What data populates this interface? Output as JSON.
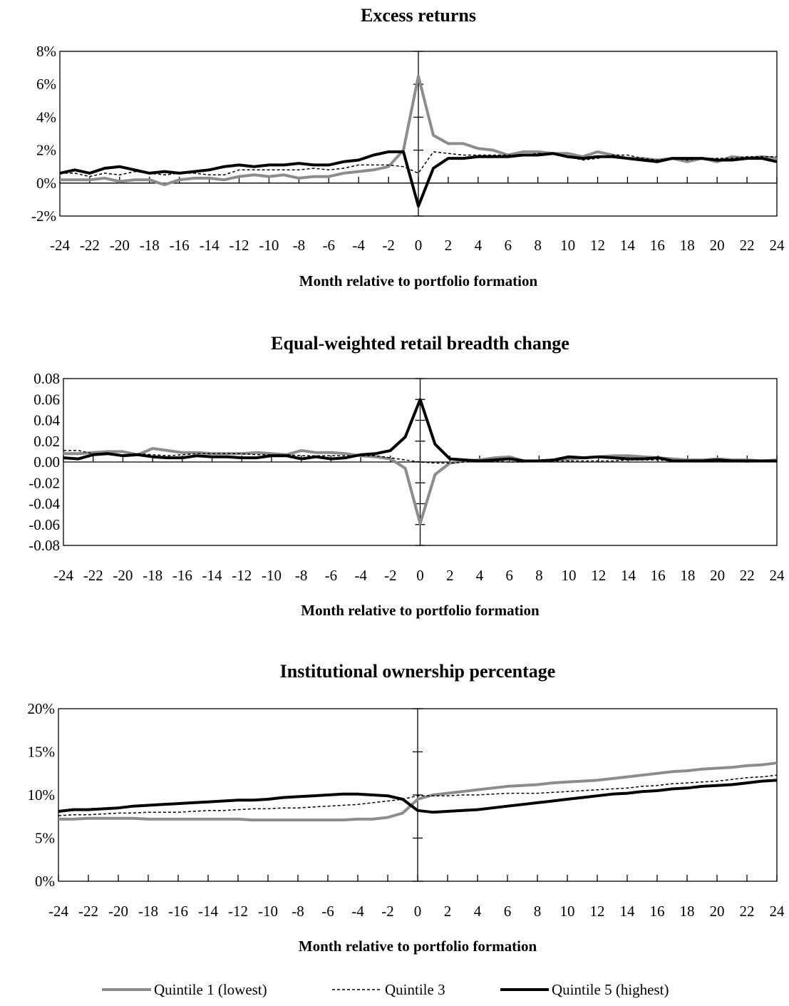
{
  "chart_data": [
    {
      "type": "line",
      "title": "Excess returns",
      "xlabel": "Month relative to portfolio formation",
      "ylabel": "",
      "ylim": [
        -0.02,
        0.08
      ],
      "y_ticks": [
        "8%",
        "6%",
        "4%",
        "2%",
        "0%",
        "-2%"
      ],
      "y_tick_values": [
        0.08,
        0.06,
        0.04,
        0.02,
        0.0,
        -0.02
      ],
      "x_tick_labels": [
        "-24",
        "-22",
        "-20",
        "-18",
        "-16",
        "-14",
        "-12",
        "-10",
        "-8",
        "-6",
        "-4",
        "-2",
        "0",
        "2",
        "4",
        "6",
        "8",
        "10",
        "12",
        "14",
        "16",
        "18",
        "20",
        "22",
        "24"
      ],
      "x": [
        -24,
        -23,
        -22,
        -21,
        -20,
        -19,
        -18,
        -17,
        -16,
        -15,
        -14,
        -13,
        -12,
        -11,
        -10,
        -9,
        -8,
        -7,
        -6,
        -5,
        -4,
        -3,
        -2,
        -1,
        0,
        1,
        2,
        3,
        4,
        5,
        6,
        7,
        8,
        9,
        10,
        11,
        12,
        13,
        14,
        15,
        16,
        17,
        18,
        19,
        20,
        21,
        22,
        23,
        24
      ],
      "series": [
        {
          "name": "Quintile 1 (lowest)",
          "values": [
            0.002,
            0.002,
            0.002,
            0.003,
            0.001,
            0.002,
            0.002,
            -0.001,
            0.002,
            0.003,
            0.003,
            0.002,
            0.004,
            0.005,
            0.004,
            0.005,
            0.003,
            0.004,
            0.004,
            0.006,
            0.007,
            0.008,
            0.01,
            0.02,
            0.065,
            0.029,
            0.024,
            0.024,
            0.021,
            0.02,
            0.017,
            0.019,
            0.019,
            0.018,
            0.018,
            0.016,
            0.019,
            0.017,
            0.015,
            0.015,
            0.014,
            0.015,
            0.013,
            0.015,
            0.013,
            0.016,
            0.015,
            0.016,
            0.015
          ]
        },
        {
          "name": "Quintile 3",
          "values": [
            0.006,
            0.006,
            0.004,
            0.006,
            0.005,
            0.007,
            0.006,
            0.005,
            0.006,
            0.006,
            0.005,
            0.005,
            0.008,
            0.008,
            0.008,
            0.008,
            0.008,
            0.009,
            0.008,
            0.009,
            0.011,
            0.011,
            0.011,
            0.01,
            0.006,
            0.019,
            0.018,
            0.017,
            0.017,
            0.017,
            0.017,
            0.017,
            0.018,
            0.018,
            0.016,
            0.014,
            0.015,
            0.017,
            0.017,
            0.015,
            0.014,
            0.015,
            0.014,
            0.015,
            0.015,
            0.015,
            0.016,
            0.016,
            0.016
          ]
        },
        {
          "name": "Quintile 5 (highest)",
          "values": [
            0.006,
            0.008,
            0.006,
            0.009,
            0.01,
            0.008,
            0.006,
            0.007,
            0.006,
            0.007,
            0.008,
            0.01,
            0.011,
            0.01,
            0.011,
            0.011,
            0.012,
            0.011,
            0.011,
            0.013,
            0.014,
            0.017,
            0.019,
            0.019,
            -0.014,
            0.009,
            0.015,
            0.015,
            0.016,
            0.016,
            0.016,
            0.017,
            0.017,
            0.018,
            0.016,
            0.015,
            0.016,
            0.016,
            0.015,
            0.014,
            0.013,
            0.015,
            0.015,
            0.015,
            0.014,
            0.014,
            0.015,
            0.015,
            0.013
          ]
        }
      ]
    },
    {
      "type": "line",
      "title": "Equal-weighted retail breadth change",
      "xlabel": "Month relative to portfolio formation",
      "ylabel": "",
      "ylim": [
        -0.08,
        0.08
      ],
      "y_ticks": [
        "0.08",
        "0.06",
        "0.04",
        "0.02",
        "0.00",
        "-0.02",
        "-0.04",
        "-0.06",
        "-0.08"
      ],
      "y_tick_values": [
        0.08,
        0.06,
        0.04,
        0.02,
        0.0,
        -0.02,
        -0.04,
        -0.06,
        -0.08
      ],
      "x_tick_labels": [
        "-24",
        "-22",
        "-20",
        "-18",
        "-16",
        "-14",
        "-12",
        "-10",
        "-8",
        "-6",
        "-4",
        "-2",
        "0",
        "2",
        "4",
        "6",
        "8",
        "10",
        "12",
        "14",
        "16",
        "18",
        "20",
        "22",
        "24"
      ],
      "x": [
        -24,
        -23,
        -22,
        -21,
        -20,
        -19,
        -18,
        -17,
        -16,
        -15,
        -14,
        -13,
        -12,
        -11,
        -10,
        -9,
        -8,
        -7,
        -6,
        -5,
        -4,
        -3,
        -2,
        -1,
        0,
        1,
        2,
        3,
        4,
        5,
        6,
        7,
        8,
        9,
        10,
        11,
        12,
        13,
        14,
        15,
        16,
        17,
        18,
        19,
        20,
        21,
        22,
        23,
        24
      ],
      "series": [
        {
          "name": "Quintile 1 (lowest)",
          "values": [
            0.008,
            0.008,
            0.009,
            0.01,
            0.01,
            0.007,
            0.013,
            0.011,
            0.009,
            0.009,
            0.008,
            0.008,
            0.008,
            0.009,
            0.008,
            0.007,
            0.011,
            0.009,
            0.009,
            0.008,
            0.006,
            0.005,
            0.003,
            -0.006,
            -0.059,
            -0.012,
            -0.001,
            0.001,
            0.002,
            0.004,
            0.005,
            0.001,
            0.001,
            0.002,
            0.003,
            0.004,
            0.005,
            0.006,
            0.006,
            0.005,
            0.004,
            0.003,
            0.002,
            0.002,
            0.003,
            0.002,
            0.002,
            0.001,
            0.002
          ]
        },
        {
          "name": "Quintile 3",
          "values": [
            0.011,
            0.011,
            0.008,
            0.007,
            0.007,
            0.008,
            0.007,
            0.006,
            0.007,
            0.008,
            0.008,
            0.008,
            0.008,
            0.007,
            0.007,
            0.007,
            0.006,
            0.006,
            0.006,
            0.006,
            0.006,
            0.006,
            0.004,
            0.002,
            0.0,
            -0.001,
            -0.001,
            0.0,
            0.001,
            0.001,
            0.0,
            0.0,
            0.001,
            0.001,
            0.001,
            0.001,
            0.001,
            0.001,
            0.002,
            0.002,
            0.002,
            0.001,
            0.001,
            0.001,
            0.001,
            0.001,
            0.0,
            0.001,
            0.0
          ]
        },
        {
          "name": "Quintile 5 (highest)",
          "values": [
            0.004,
            0.003,
            0.007,
            0.008,
            0.006,
            0.007,
            0.005,
            0.004,
            0.004,
            0.006,
            0.005,
            0.005,
            0.004,
            0.004,
            0.006,
            0.006,
            0.003,
            0.005,
            0.003,
            0.004,
            0.007,
            0.008,
            0.011,
            0.024,
            0.06,
            0.017,
            0.003,
            0.002,
            0.001,
            0.002,
            0.003,
            0.001,
            0.001,
            0.002,
            0.005,
            0.004,
            0.005,
            0.004,
            0.003,
            0.003,
            0.004,
            0.001,
            0.001,
            0.001,
            0.002,
            0.001,
            0.001,
            0.001,
            0.001
          ]
        }
      ]
    },
    {
      "type": "line",
      "title": "Institutional ownership percentage",
      "xlabel": "Month relative to portfolio formation",
      "ylabel": "",
      "ylim": [
        0.0,
        0.2
      ],
      "y_ticks": [
        "20%",
        "15%",
        "10%",
        "5%",
        "0%"
      ],
      "y_tick_values": [
        0.2,
        0.15,
        0.1,
        0.05,
        0.0
      ],
      "x_tick_labels": [
        "-24",
        "-22",
        "-20",
        "-18",
        "-16",
        "-14",
        "-12",
        "-10",
        "-8",
        "-6",
        "-4",
        "-2",
        "0",
        "2",
        "4",
        "6",
        "8",
        "10",
        "12",
        "14",
        "16",
        "18",
        "20",
        "22",
        "24"
      ],
      "x": [
        -24,
        -23,
        -22,
        -21,
        -20,
        -19,
        -18,
        -17,
        -16,
        -15,
        -14,
        -13,
        -12,
        -11,
        -10,
        -9,
        -8,
        -7,
        -6,
        -5,
        -4,
        -3,
        -2,
        -1,
        0,
        1,
        2,
        3,
        4,
        5,
        6,
        7,
        8,
        9,
        10,
        11,
        12,
        13,
        14,
        15,
        16,
        17,
        18,
        19,
        20,
        21,
        22,
        23,
        24
      ],
      "series": [
        {
          "name": "Quintile 1 (lowest)",
          "values": [
            0.072,
            0.072,
            0.073,
            0.073,
            0.073,
            0.073,
            0.072,
            0.072,
            0.072,
            0.072,
            0.072,
            0.072,
            0.072,
            0.071,
            0.071,
            0.071,
            0.071,
            0.071,
            0.071,
            0.071,
            0.072,
            0.072,
            0.074,
            0.079,
            0.095,
            0.1,
            0.102,
            0.104,
            0.106,
            0.108,
            0.11,
            0.111,
            0.112,
            0.114,
            0.115,
            0.116,
            0.117,
            0.119,
            0.121,
            0.123,
            0.125,
            0.127,
            0.128,
            0.13,
            0.131,
            0.132,
            0.134,
            0.135,
            0.137
          ]
        },
        {
          "name": "Quintile 3",
          "values": [
            0.076,
            0.077,
            0.077,
            0.078,
            0.079,
            0.079,
            0.08,
            0.08,
            0.08,
            0.081,
            0.082,
            0.082,
            0.083,
            0.084,
            0.084,
            0.085,
            0.085,
            0.086,
            0.087,
            0.088,
            0.089,
            0.091,
            0.093,
            0.095,
            0.099,
            0.099,
            0.099,
            0.1,
            0.1,
            0.101,
            0.102,
            0.102,
            0.102,
            0.103,
            0.104,
            0.105,
            0.106,
            0.107,
            0.108,
            0.11,
            0.111,
            0.113,
            0.114,
            0.115,
            0.116,
            0.118,
            0.12,
            0.121,
            0.123
          ]
        },
        {
          "name": "Quintile 5 (highest)",
          "values": [
            0.081,
            0.083,
            0.083,
            0.084,
            0.085,
            0.087,
            0.088,
            0.089,
            0.09,
            0.091,
            0.092,
            0.093,
            0.094,
            0.094,
            0.095,
            0.097,
            0.098,
            0.099,
            0.1,
            0.101,
            0.101,
            0.1,
            0.099,
            0.095,
            0.082,
            0.08,
            0.081,
            0.082,
            0.083,
            0.085,
            0.087,
            0.089,
            0.091,
            0.093,
            0.095,
            0.097,
            0.099,
            0.101,
            0.102,
            0.104,
            0.105,
            0.107,
            0.108,
            0.11,
            0.111,
            0.112,
            0.114,
            0.116,
            0.117
          ]
        }
      ]
    }
  ],
  "legend": {
    "placement": "bottom",
    "items": [
      "Quintile 1 (lowest)",
      "Quintile 3",
      "Quintile 5 (highest)"
    ]
  },
  "colors": {
    "quintile1": "#8c8c8c",
    "quintile3": "#000000",
    "quintile5": "#000000"
  }
}
